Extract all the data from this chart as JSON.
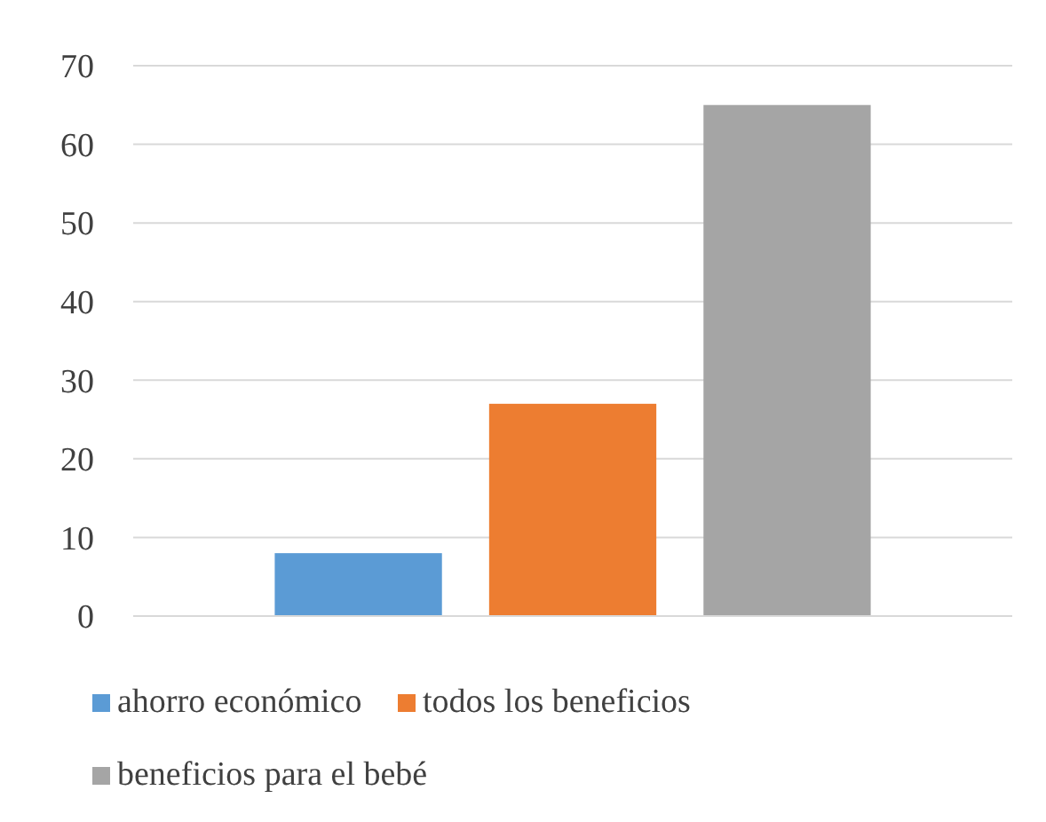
{
  "chart_data": {
    "type": "bar",
    "categories": [
      null
    ],
    "series": [
      {
        "name": "ahorro económico",
        "color": "#5b9bd5",
        "values": [
          8
        ]
      },
      {
        "name": "todos los beneficios",
        "color": "#ed7d31",
        "values": [
          27
        ]
      },
      {
        "name": "beneficios para el bebé",
        "color": "#a5a5a5",
        "values": [
          65
        ]
      }
    ],
    "ylim": [
      0,
      70
    ],
    "yticks": [
      0,
      10,
      20,
      30,
      40,
      50,
      60,
      70
    ],
    "grid": "y",
    "legend": "bottom"
  }
}
